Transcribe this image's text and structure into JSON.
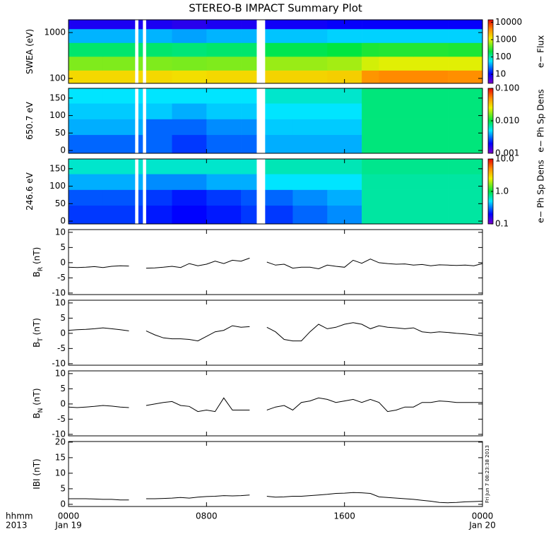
{
  "chart_data": [
    {
      "type": "heatmap",
      "title": "STEREO-B IMPACT Summary Plot",
      "ylabel": "SWEA (eV)",
      "ylog": true,
      "xlim": [
        0,
        24
      ],
      "xticks": [
        0,
        8,
        16,
        24
      ],
      "ylim": [
        78,
        1900
      ],
      "yticks": [
        100,
        1000
      ],
      "xbins": [
        0,
        2,
        3.85,
        4.05,
        4.3,
        4.5,
        6,
        8,
        10,
        10.9,
        11.4,
        13,
        15,
        17,
        18,
        20,
        22,
        24
      ],
      "ybins": [
        78,
        150,
        300,
        600,
        1200,
        1900
      ],
      "z": [
        [
          1500,
          1500,
          null,
          1500,
          null,
          1500,
          1400,
          1500,
          1500,
          null,
          1600,
          1600,
          1700,
          3500,
          4000,
          4000,
          3800
        ],
        [
          500,
          500,
          null,
          500,
          null,
          500,
          480,
          500,
          500,
          null,
          600,
          600,
          650,
          900,
          1000,
          1000,
          1000
        ],
        [
          150,
          150,
          null,
          150,
          null,
          150,
          140,
          150,
          150,
          null,
          180,
          180,
          200,
          250,
          260,
          260,
          250
        ],
        [
          40,
          40,
          null,
          40,
          null,
          40,
          35,
          40,
          40,
          null,
          45,
          45,
          50,
          50,
          50,
          50,
          50
        ],
        [
          8,
          8,
          null,
          8,
          null,
          8,
          7,
          8,
          8,
          null,
          9,
          9,
          10,
          10,
          10,
          10,
          10
        ]
      ],
      "zlog": true,
      "zlim": [
        3,
        14000
      ],
      "zticks": [
        10000,
        1000,
        100,
        10
      ],
      "colorbar_label": "e− Flux"
    },
    {
      "type": "heatmap",
      "ylabel": "650.7 eV",
      "ylog": false,
      "xlim": [
        0,
        24
      ],
      "xticks": [
        0,
        8,
        16,
        24
      ],
      "ylim": [
        -8,
        178
      ],
      "yticks": [
        0,
        50,
        100,
        150
      ],
      "xbins": [
        0,
        2,
        3.85,
        4.05,
        4.3,
        4.5,
        6,
        8,
        10,
        10.9,
        11.4,
        13,
        15,
        17,
        18,
        20,
        22,
        24
      ],
      "ybins": [
        -8,
        45,
        90,
        135,
        178
      ],
      "z": [
        [
          0.003,
          0.003,
          null,
          0.003,
          null,
          0.003,
          0.0025,
          0.003,
          0.003,
          null,
          0.004,
          0.004,
          0.004,
          0.008,
          0.008,
          0.008,
          0.008
        ],
        [
          0.004,
          0.004,
          null,
          0.004,
          null,
          0.003,
          0.003,
          0.0035,
          0.0035,
          null,
          0.0045,
          0.0045,
          0.0045,
          0.008,
          0.008,
          0.008,
          0.008
        ],
        [
          0.0045,
          0.0045,
          null,
          0.0045,
          null,
          0.0045,
          0.004,
          0.0045,
          0.0045,
          null,
          0.005,
          0.005,
          0.005,
          0.008,
          0.008,
          0.008,
          0.008
        ],
        [
          0.005,
          0.005,
          null,
          0.005,
          null,
          0.005,
          0.005,
          0.005,
          0.005,
          null,
          0.006,
          0.006,
          0.006,
          0.008,
          0.008,
          0.008,
          0.008
        ]
      ],
      "zlog": true,
      "zlim": [
        0.001,
        0.1
      ],
      "zticks": [
        {
          "value": 0.1,
          "label": "0.100"
        },
        {
          "value": 0.01,
          "label": "0.010"
        },
        {
          "value": 0.001,
          "label": "0.001"
        }
      ],
      "colorbar_label": "e− Ph Sp Dens"
    },
    {
      "type": "heatmap",
      "ylabel": "246.6 eV",
      "ylog": false,
      "xlim": [
        0,
        24
      ],
      "xticks": [
        0,
        8,
        16,
        24
      ],
      "ylim": [
        -8,
        178
      ],
      "yticks": [
        0,
        50,
        100,
        150
      ],
      "xbins": [
        0,
        2,
        3.85,
        4.05,
        4.3,
        4.5,
        6,
        8,
        10,
        10.9,
        11.4,
        13,
        15,
        17,
        18,
        20,
        22,
        24
      ],
      "ybins": [
        -8,
        45,
        90,
        135,
        178
      ],
      "z": [
        [
          0.25,
          0.25,
          null,
          0.25,
          null,
          0.22,
          0.2,
          0.22,
          0.25,
          null,
          0.25,
          0.3,
          0.35,
          0.7,
          0.7,
          0.7,
          0.7
        ],
        [
          0.28,
          0.28,
          null,
          0.28,
          null,
          0.25,
          0.22,
          0.25,
          0.28,
          null,
          0.3,
          0.35,
          0.4,
          0.7,
          0.7,
          0.7,
          0.7
        ],
        [
          0.4,
          0.4,
          null,
          0.4,
          null,
          0.35,
          0.35,
          0.4,
          0.4,
          null,
          0.5,
          0.5,
          0.5,
          0.7,
          0.7,
          0.7,
          0.7
        ],
        [
          0.6,
          0.6,
          null,
          0.6,
          null,
          0.6,
          0.6,
          0.6,
          0.6,
          null,
          0.65,
          0.65,
          0.65,
          0.75,
          0.75,
          0.75,
          0.75
        ]
      ],
      "zlog": true,
      "zlim": [
        0.1,
        10
      ],
      "zticks": [
        {
          "value": 10,
          "label": "10.0"
        },
        {
          "value": 1,
          "label": "1.0"
        },
        {
          "value": 0.1,
          "label": "0.1"
        }
      ],
      "colorbar_label": "e− Ph Sp Dens"
    },
    {
      "type": "line",
      "ylabel": "B",
      "ylabel_sub": "R",
      "ylabel_unit": " (nT)",
      "color": "#000000",
      "xlim": [
        0,
        24
      ],
      "xticks": [
        0,
        8,
        16,
        24
      ],
      "ylim": [
        -10.5,
        10.9
      ],
      "yticks": [
        -10,
        -5,
        0,
        5,
        10
      ],
      "x": [
        0,
        0.5,
        1,
        1.5,
        2,
        2.5,
        3,
        3.5,
        4,
        4.5,
        5,
        5.5,
        6,
        6.5,
        7,
        7.5,
        8,
        8.5,
        9,
        9.5,
        10,
        10.5,
        11,
        11.5,
        12,
        12.5,
        13,
        13.5,
        14,
        14.5,
        15,
        15.5,
        16,
        16.5,
        17,
        17.5,
        18,
        18.5,
        19,
        19.5,
        20,
        20.5,
        21,
        21.5,
        22,
        22.5,
        23,
        23.5,
        24
      ],
      "values": [
        -1.5,
        -1.6,
        -1.5,
        -1.3,
        -1.6,
        -1.2,
        -1.0,
        -1.1,
        null,
        -1.8,
        -1.7,
        -1.5,
        -1.2,
        -1.6,
        -0.3,
        -1.0,
        -0.5,
        0.5,
        -0.3,
        0.8,
        0.5,
        1.5,
        null,
        0.2,
        -0.8,
        -0.5,
        -1.8,
        -1.5,
        -1.5,
        -2.0,
        -0.8,
        -1.2,
        -1.5,
        0.8,
        -0.2,
        1.2,
        0,
        -0.3,
        -0.5,
        -0.4,
        -0.8,
        -0.6,
        -1.0,
        -0.7,
        -0.8,
        -0.9,
        -0.8,
        -1.0,
        -0.3
      ]
    },
    {
      "type": "line",
      "ylabel": "B",
      "ylabel_sub": "T",
      "ylabel_unit": " (nT)",
      "color": "#000000",
      "xlim": [
        0,
        24
      ],
      "xticks": [
        0,
        8,
        16,
        24
      ],
      "ylim": [
        -10.5,
        10.9
      ],
      "yticks": [
        -10,
        -5,
        0,
        5,
        10
      ],
      "x": [
        0,
        0.5,
        1,
        1.5,
        2,
        2.5,
        3,
        3.5,
        4,
        4.5,
        5,
        5.5,
        6,
        6.5,
        7,
        7.5,
        8,
        8.5,
        9,
        9.5,
        10,
        10.5,
        11,
        11.5,
        12,
        12.5,
        13,
        13.5,
        14,
        14.5,
        15,
        15.5,
        16,
        16.5,
        17,
        17.5,
        18,
        18.5,
        19,
        19.5,
        20,
        20.5,
        21,
        21.5,
        22,
        22.5,
        23,
        23.5,
        24
      ],
      "values": [
        1.0,
        1.2,
        1.3,
        1.5,
        1.8,
        1.5,
        1.2,
        0.8,
        null,
        0.8,
        -0.5,
        -1.5,
        -1.8,
        -1.8,
        -2.0,
        -2.5,
        -1.0,
        0.5,
        1.0,
        2.5,
        2.0,
        2.2,
        null,
        2.0,
        0.5,
        -2.0,
        -2.5,
        -2.5,
        0.5,
        3.0,
        1.5,
        2.0,
        3.0,
        3.5,
        3.0,
        1.5,
        2.5,
        2.0,
        1.8,
        1.5,
        1.8,
        0.5,
        0.2,
        0.5,
        0.3,
        0.0,
        -0.2,
        -0.5,
        -0.8
      ]
    },
    {
      "type": "line",
      "ylabel": "B",
      "ylabel_sub": "N",
      "ylabel_unit": " (nT)",
      "color": "#000000",
      "xlim": [
        0,
        24
      ],
      "xticks": [
        0,
        8,
        16,
        24
      ],
      "ylim": [
        -10.5,
        10.9
      ],
      "yticks": [
        -10,
        -5,
        0,
        5,
        10
      ],
      "x": [
        0,
        0.5,
        1,
        1.5,
        2,
        2.5,
        3,
        3.5,
        4,
        4.5,
        5,
        5.5,
        6,
        6.5,
        7,
        7.5,
        8,
        8.5,
        9,
        9.5,
        10,
        10.5,
        11,
        11.5,
        12,
        12.5,
        13,
        13.5,
        14,
        14.5,
        15,
        15.5,
        16,
        16.5,
        17,
        17.5,
        18,
        18.5,
        19,
        19.5,
        20,
        20.5,
        21,
        21.5,
        22,
        22.5,
        23,
        23.5,
        24
      ],
      "values": [
        -1.0,
        -1.2,
        -1.0,
        -0.8,
        -0.5,
        -0.7,
        -1.0,
        -1.2,
        null,
        -0.5,
        0,
        0.5,
        0.8,
        -0.5,
        -0.8,
        -2.5,
        -2.0,
        -2.5,
        2.0,
        -2.0,
        -2.0,
        -2.0,
        null,
        -2.0,
        -1.0,
        -0.5,
        -2.0,
        0.5,
        1.0,
        2.0,
        1.5,
        0.5,
        1.0,
        1.5,
        0.5,
        1.5,
        0.5,
        -2.5,
        -2.0,
        -1.0,
        -1.0,
        0.5,
        0.5,
        1.0,
        0.8,
        0.5,
        0.5,
        0.5,
        0.5
      ]
    },
    {
      "type": "line",
      "ylabel": "IBI (nT)",
      "color": "#000000",
      "xlim": [
        0,
        24
      ],
      "ylim": [
        -0.7,
        20.2
      ],
      "yticks": [
        0,
        5,
        10,
        15,
        20
      ],
      "xticks": [
        {
          "value": 0,
          "label": "0000"
        },
        {
          "value": 8,
          "label": "0800"
        },
        {
          "value": 16,
          "label": "1600"
        },
        {
          "value": 24,
          "label": "0000"
        }
      ],
      "date_labels": [
        {
          "value": 0,
          "label": "Jan 19"
        },
        {
          "value": 24,
          "label": "Jan 20"
        }
      ],
      "axis_row_labels": [
        "hhmm",
        "2013"
      ],
      "annotation": "Fri Jun  7 08:23:38 2013",
      "x": [
        0,
        0.5,
        1,
        1.5,
        2,
        2.5,
        3,
        3.5,
        4,
        4.5,
        5,
        5.5,
        6,
        6.5,
        7,
        7.5,
        8,
        8.5,
        9,
        9.5,
        10,
        10.5,
        11,
        11.5,
        12,
        12.5,
        13,
        13.5,
        14,
        14.5,
        15,
        15.5,
        16,
        16.5,
        17,
        17.5,
        18,
        18.5,
        19,
        19.5,
        20,
        20.5,
        21,
        21.5,
        22,
        22.5,
        23,
        23.5,
        24
      ],
      "values": [
        1.8,
        1.8,
        1.8,
        1.7,
        1.6,
        1.6,
        1.4,
        1.4,
        null,
        1.8,
        1.8,
        1.9,
        2.0,
        2.2,
        2.0,
        2.3,
        2.5,
        2.6,
        2.8,
        2.7,
        2.8,
        3.0,
        null,
        2.6,
        2.3,
        2.4,
        2.6,
        2.6,
        2.8,
        3.0,
        3.2,
        3.5,
        3.6,
        3.8,
        3.7,
        3.5,
        2.4,
        2.2,
        2.0,
        1.8,
        1.6,
        1.3,
        1.0,
        0.6,
        0.5,
        0.6,
        0.8,
        0.9,
        1.0
      ]
    }
  ]
}
